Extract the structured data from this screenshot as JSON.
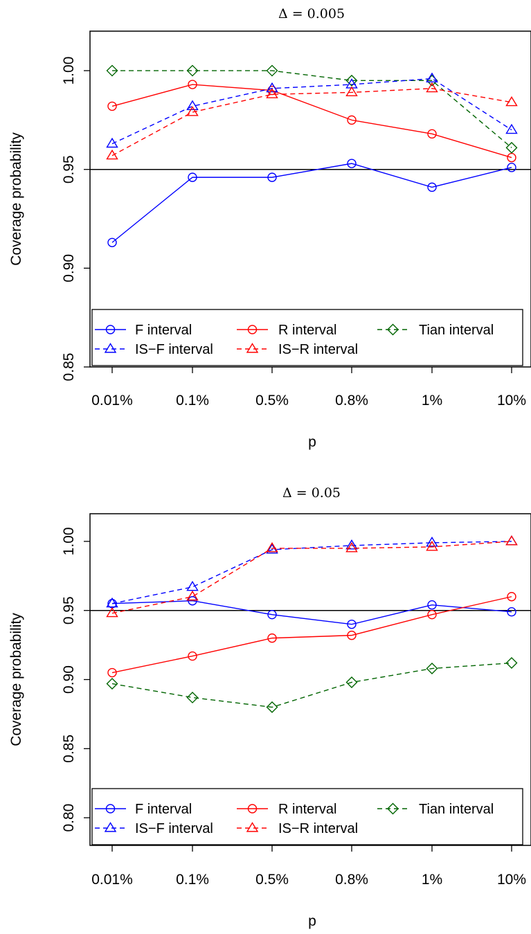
{
  "figure": {
    "ylabel": "Coverage probability",
    "xlabel": "p"
  },
  "legend": {
    "items": [
      {
        "label": "F interval",
        "color": "#0000ff",
        "dash": "solid",
        "marker": "circle"
      },
      {
        "label": "R interval",
        "color": "#ff0000",
        "dash": "solid",
        "marker": "circle"
      },
      {
        "label": "Tian interval",
        "color": "#006400",
        "dash": "dashed",
        "marker": "diamond"
      },
      {
        "label": "IS−F interval",
        "color": "#0000ff",
        "dash": "dashed",
        "marker": "triangle"
      },
      {
        "label": "IS−R interval",
        "color": "#ff0000",
        "dash": "dashed",
        "marker": "triangle"
      }
    ]
  },
  "chart_data": [
    {
      "type": "line",
      "title": "Δ = 0.005",
      "xlabel": "p",
      "ylabel": "Coverage probability",
      "categories": [
        "0.01%",
        "0.1%",
        "0.5%",
        "0.8%",
        "1%",
        "10%"
      ],
      "ylim": [
        0.85,
        1.02
      ],
      "yticks": [
        "0.85",
        "0.90",
        "0.95",
        "1.00"
      ],
      "reference_line": 0.95,
      "legend_position": "bottom",
      "series": [
        {
          "name": "F interval",
          "color": "#0000ff",
          "dash": "solid",
          "marker": "circle",
          "values": [
            0.913,
            0.946,
            0.946,
            0.953,
            0.941,
            0.951
          ]
        },
        {
          "name": "R interval",
          "color": "#ff0000",
          "dash": "solid",
          "marker": "circle",
          "values": [
            0.982,
            0.993,
            0.99,
            0.975,
            0.968,
            0.956
          ]
        },
        {
          "name": "Tian interval",
          "color": "#006400",
          "dash": "dashed",
          "marker": "diamond",
          "values": [
            1.0,
            1.0,
            1.0,
            0.995,
            0.995,
            0.961
          ]
        },
        {
          "name": "IS−F interval",
          "color": "#0000ff",
          "dash": "dashed",
          "marker": "triangle",
          "values": [
            0.963,
            0.982,
            0.991,
            0.993,
            0.996,
            0.97
          ]
        },
        {
          "name": "IS−R interval",
          "color": "#ff0000",
          "dash": "dashed",
          "marker": "triangle",
          "values": [
            0.957,
            0.979,
            0.988,
            0.989,
            0.991,
            0.984
          ]
        }
      ]
    },
    {
      "type": "line",
      "title": "Δ = 0.05",
      "xlabel": "p",
      "ylabel": "Coverage probability",
      "categories": [
        "0.01%",
        "0.1%",
        "0.5%",
        "0.8%",
        "1%",
        "10%"
      ],
      "ylim": [
        0.78,
        1.02
      ],
      "yticks": [
        "0.80",
        "0.85",
        "0.90",
        "0.95",
        "1.00"
      ],
      "reference_line": 0.95,
      "legend_position": "bottom",
      "series": [
        {
          "name": "F interval",
          "color": "#0000ff",
          "dash": "solid",
          "marker": "circle",
          "values": [
            0.955,
            0.957,
            0.947,
            0.94,
            0.954,
            0.949
          ]
        },
        {
          "name": "R interval",
          "color": "#ff0000",
          "dash": "solid",
          "marker": "circle",
          "values": [
            0.905,
            0.917,
            0.93,
            0.932,
            0.947,
            0.96
          ]
        },
        {
          "name": "Tian interval",
          "color": "#006400",
          "dash": "dashed",
          "marker": "diamond",
          "values": [
            0.897,
            0.887,
            0.88,
            0.898,
            0.908,
            0.912
          ]
        },
        {
          "name": "IS−F interval",
          "color": "#0000ff",
          "dash": "dashed",
          "marker": "triangle",
          "values": [
            0.955,
            0.967,
            0.994,
            0.997,
            0.999,
            1.0
          ]
        },
        {
          "name": "IS−R interval",
          "color": "#ff0000",
          "dash": "dashed",
          "marker": "triangle",
          "values": [
            0.948,
            0.96,
            0.995,
            0.995,
            0.996,
            1.0
          ]
        }
      ]
    }
  ]
}
